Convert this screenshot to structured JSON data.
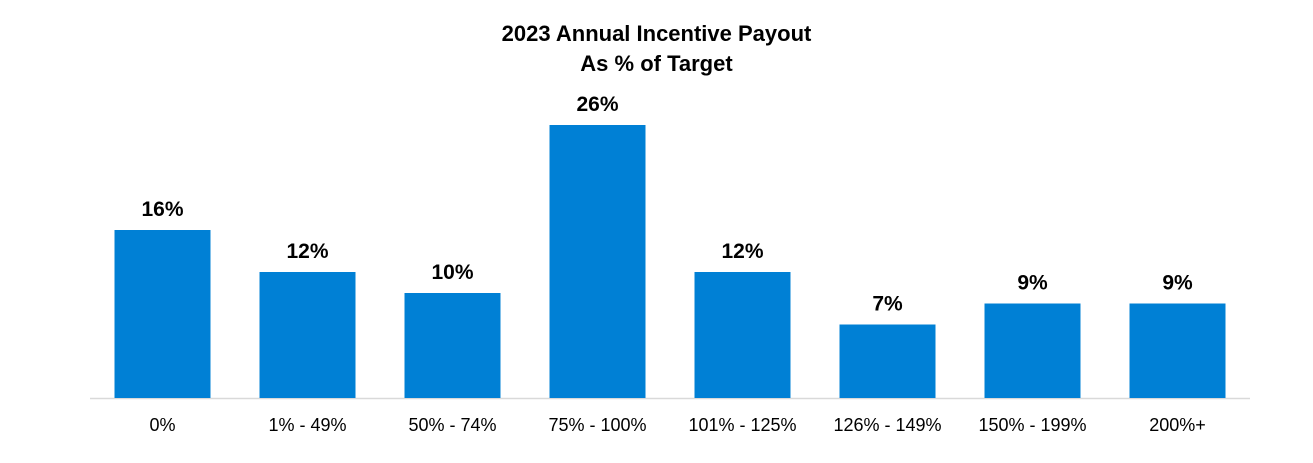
{
  "chart_data": {
    "type": "bar",
    "title": "2023 Annual Incentive Payout",
    "subtitle": "As % of Target",
    "categories": [
      "0%",
      "1% - 49%",
      "50% - 74%",
      "75% - 100%",
      "101% - 125%",
      "126% - 149%",
      "150% - 199%",
      "200%+"
    ],
    "values": [
      16,
      12,
      10,
      26,
      12,
      7,
      9,
      9
    ],
    "value_labels": [
      "16%",
      "12%",
      "10%",
      "26%",
      "12%",
      "7%",
      "9%",
      "9%"
    ],
    "xlabel": "",
    "ylabel": "",
    "ylim": [
      0,
      26
    ],
    "grid": false,
    "legend": "none",
    "bar_color": "#0080D5"
  }
}
